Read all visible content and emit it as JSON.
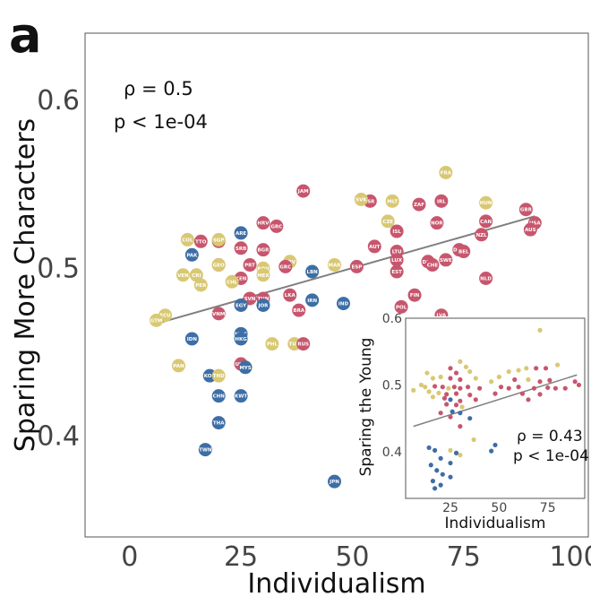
{
  "colors": {
    "blue": "#3d6ea6",
    "yellow": "#d9c873",
    "red": "#c7566d",
    "fit": "#808080"
  },
  "chart_data": [
    {
      "type": "scatter",
      "panel_label": "a",
      "xlabel": "Individualism",
      "ylabel": "Sparing More Characters",
      "xlim": [
        -10,
        103
      ],
      "ylim": [
        0.34,
        0.64
      ],
      "xticks": [
        0,
        25,
        50,
        75,
        100
      ],
      "yticks": [
        0.4,
        0.5,
        0.6
      ],
      "xtick_labels": [
        "0",
        "25",
        "50",
        "75",
        "100"
      ],
      "ytick_labels": [
        "0.4",
        "0.5",
        "0.6"
      ],
      "grid": false,
      "stat_rho": "ρ = 0.5",
      "stat_p": "p < 1e-04",
      "fit_line": {
        "x": [
          6,
          91
        ],
        "y": [
          0.467,
          0.531
        ]
      },
      "points": [
        {
          "label": "FRA",
          "x": 71,
          "y": 0.557,
          "group": "yellow"
        },
        {
          "label": "JAM",
          "x": 39,
          "y": 0.546,
          "group": "red"
        },
        {
          "label": "ISR",
          "x": 54,
          "y": 0.54,
          "group": "red"
        },
        {
          "label": "MLT",
          "x": 59,
          "y": 0.54,
          "group": "yellow"
        },
        {
          "label": "ZAF",
          "x": 65,
          "y": 0.538,
          "group": "red"
        },
        {
          "label": "IRL",
          "x": 70,
          "y": 0.54,
          "group": "red"
        },
        {
          "label": "HUN",
          "x": 80,
          "y": 0.539,
          "group": "yellow"
        },
        {
          "label": "GBR",
          "x": 89,
          "y": 0.535,
          "group": "red"
        },
        {
          "label": "SVK",
          "x": 52,
          "y": 0.541,
          "group": "yellow"
        },
        {
          "label": "CZE",
          "x": 58,
          "y": 0.528,
          "group": "yellow"
        },
        {
          "label": "NOR",
          "x": 69,
          "y": 0.527,
          "group": "red"
        },
        {
          "label": "CAN",
          "x": 80,
          "y": 0.528,
          "group": "red"
        },
        {
          "label": "USA",
          "x": 91,
          "y": 0.527,
          "group": "red"
        },
        {
          "label": "AUS",
          "x": 90,
          "y": 0.523,
          "group": "red"
        },
        {
          "label": "ISL",
          "x": 60,
          "y": 0.522,
          "group": "red"
        },
        {
          "label": "NZL",
          "x": 79,
          "y": 0.52,
          "group": "red"
        },
        {
          "label": "ARE",
          "x": 25,
          "y": 0.521,
          "group": "blue"
        },
        {
          "label": "HRV",
          "x": 30,
          "y": 0.527,
          "group": "red"
        },
        {
          "label": "GRC",
          "x": 33,
          "y": 0.525,
          "group": "red"
        },
        {
          "label": "COL",
          "x": 13,
          "y": 0.517,
          "group": "yellow"
        },
        {
          "label": "TTO",
          "x": 16,
          "y": 0.516,
          "group": "red"
        },
        {
          "label": "BGD",
          "x": 20,
          "y": 0.516,
          "group": "red"
        },
        {
          "label": "SGP",
          "x": 20,
          "y": 0.517,
          "group": "yellow"
        },
        {
          "label": "SRB",
          "x": 25,
          "y": 0.512,
          "group": "red"
        },
        {
          "label": "BGR",
          "x": 30,
          "y": 0.511,
          "group": "red"
        },
        {
          "label": "AUT",
          "x": 55,
          "y": 0.513,
          "group": "red"
        },
        {
          "label": "LTU",
          "x": 60,
          "y": 0.51,
          "group": "red"
        },
        {
          "label": "DNK",
          "x": 74,
          "y": 0.511,
          "group": "red"
        },
        {
          "label": "BEL",
          "x": 75,
          "y": 0.51,
          "group": "red"
        },
        {
          "label": "PAK",
          "x": 14,
          "y": 0.508,
          "group": "blue"
        },
        {
          "label": "LUX",
          "x": 60,
          "y": 0.505,
          "group": "red"
        },
        {
          "label": "DEU",
          "x": 67,
          "y": 0.504,
          "group": "red"
        },
        {
          "label": "SWE",
          "x": 71,
          "y": 0.505,
          "group": "red"
        },
        {
          "label": "CHE",
          "x": 68,
          "y": 0.502,
          "group": "red"
        },
        {
          "label": "IDN",
          "x": 20,
          "y": 0.502,
          "group": "red"
        },
        {
          "label": "PRT",
          "x": 27,
          "y": 0.502,
          "group": "red"
        },
        {
          "label": "ROU",
          "x": 30,
          "y": 0.5,
          "group": "yellow"
        },
        {
          "label": "GEO",
          "x": 20,
          "y": 0.502,
          "group": "yellow"
        },
        {
          "label": "CRV",
          "x": 36,
          "y": 0.504,
          "group": "yellow"
        },
        {
          "label": "GRC",
          "x": 35,
          "y": 0.501,
          "group": "red"
        },
        {
          "label": "MAR",
          "x": 46,
          "y": 0.502,
          "group": "yellow"
        },
        {
          "label": "ESP",
          "x": 51,
          "y": 0.501,
          "group": "red"
        },
        {
          "label": "EST",
          "x": 60,
          "y": 0.498,
          "group": "red"
        },
        {
          "label": "NLD",
          "x": 80,
          "y": 0.494,
          "group": "red"
        },
        {
          "label": "LBN",
          "x": 41,
          "y": 0.498,
          "group": "blue"
        },
        {
          "label": "MEX",
          "x": 30,
          "y": 0.496,
          "group": "yellow"
        },
        {
          "label": "VEN",
          "x": 12,
          "y": 0.496,
          "group": "yellow"
        },
        {
          "label": "CRI",
          "x": 15,
          "y": 0.496,
          "group": "yellow"
        },
        {
          "label": "KEN",
          "x": 25,
          "y": 0.494,
          "group": "red"
        },
        {
          "label": "PER",
          "x": 16,
          "y": 0.49,
          "group": "yellow"
        },
        {
          "label": "CHL",
          "x": 23,
          "y": 0.492,
          "group": "yellow"
        },
        {
          "label": "SVN",
          "x": 27,
          "y": 0.482,
          "group": "red"
        },
        {
          "label": "TUN",
          "x": 30,
          "y": 0.482,
          "group": "red"
        },
        {
          "label": "LKA",
          "x": 36,
          "y": 0.484,
          "group": "red"
        },
        {
          "label": "FIN",
          "x": 64,
          "y": 0.484,
          "group": "red"
        },
        {
          "label": "POL",
          "x": 61,
          "y": 0.477,
          "group": "red"
        },
        {
          "label": "IRN",
          "x": 41,
          "y": 0.481,
          "group": "blue"
        },
        {
          "label": "IND",
          "x": 48,
          "y": 0.479,
          "group": "blue"
        },
        {
          "label": "EGY",
          "x": 25,
          "y": 0.478,
          "group": "blue"
        },
        {
          "label": "JOR",
          "x": 30,
          "y": 0.478,
          "group": "blue"
        },
        {
          "label": "BRA",
          "x": 38,
          "y": 0.475,
          "group": "red"
        },
        {
          "label": "VNM",
          "x": 20,
          "y": 0.473,
          "group": "red"
        },
        {
          "label": "ECU",
          "x": 8,
          "y": 0.472,
          "group": "yellow"
        },
        {
          "label": "GTM",
          "x": 6,
          "y": 0.469,
          "group": "yellow"
        },
        {
          "label": "LVA",
          "x": 70,
          "y": 0.472,
          "group": "red"
        },
        {
          "label": "IDN",
          "x": 14,
          "y": 0.458,
          "group": "blue"
        },
        {
          "label": "MAC",
          "x": 25,
          "y": 0.461,
          "group": "blue"
        },
        {
          "label": "HKG",
          "x": 25,
          "y": 0.458,
          "group": "blue"
        },
        {
          "label": "PHL",
          "x": 32,
          "y": 0.455,
          "group": "yellow"
        },
        {
          "label": "TUR",
          "x": 37,
          "y": 0.455,
          "group": "yellow"
        },
        {
          "label": "RUS",
          "x": 39,
          "y": 0.455,
          "group": "red"
        },
        {
          "label": "PAN",
          "x": 11,
          "y": 0.442,
          "group": "yellow"
        },
        {
          "label": "UKR",
          "x": 25,
          "y": 0.443,
          "group": "red"
        },
        {
          "label": "MYS",
          "x": 26,
          "y": 0.441,
          "group": "blue"
        },
        {
          "label": "KOR",
          "x": 18,
          "y": 0.436,
          "group": "blue"
        },
        {
          "label": "THD",
          "x": 20,
          "y": 0.436,
          "group": "yellow"
        },
        {
          "label": "CHN",
          "x": 20,
          "y": 0.424,
          "group": "blue"
        },
        {
          "label": "KWT",
          "x": 25,
          "y": 0.424,
          "group": "blue"
        },
        {
          "label": "THA",
          "x": 20,
          "y": 0.408,
          "group": "blue"
        },
        {
          "label": "TWN",
          "x": 17,
          "y": 0.392,
          "group": "blue"
        },
        {
          "label": "JPN",
          "x": 46,
          "y": 0.373,
          "group": "blue"
        }
      ]
    },
    {
      "type": "scatter",
      "xlabel": "Individualism",
      "ylabel": "Sparing the Young",
      "xlim": [
        2,
        94
      ],
      "ylim": [
        0.33,
        0.6
      ],
      "xticks": [
        25,
        50,
        75
      ],
      "yticks": [
        0.4,
        0.5,
        0.6
      ],
      "xtick_labels": [
        "25",
        "50",
        "75"
      ],
      "ytick_labels": [
        "0.4",
        "0.5",
        "0.6"
      ],
      "grid": false,
      "stat_rho": "ρ = 0.43",
      "stat_p": "p < 1e-04",
      "fit_line": {
        "x": [
          6,
          90
        ],
        "y": [
          0.438,
          0.515
        ]
      },
      "points": [
        {
          "x": 71,
          "y": 0.582,
          "group": "yellow"
        },
        {
          "x": 30,
          "y": 0.535,
          "group": "yellow"
        },
        {
          "x": 33,
          "y": 0.527,
          "group": "yellow"
        },
        {
          "x": 25,
          "y": 0.525,
          "group": "red"
        },
        {
          "x": 28,
          "y": 0.518,
          "group": "red"
        },
        {
          "x": 35,
          "y": 0.52,
          "group": "yellow"
        },
        {
          "x": 55,
          "y": 0.52,
          "group": "yellow"
        },
        {
          "x": 60,
          "y": 0.522,
          "group": "yellow"
        },
        {
          "x": 64,
          "y": 0.525,
          "group": "yellow"
        },
        {
          "x": 69,
          "y": 0.525,
          "group": "red"
        },
        {
          "x": 74,
          "y": 0.525,
          "group": "red"
        },
        {
          "x": 80,
          "y": 0.53,
          "group": "yellow"
        },
        {
          "x": 13,
          "y": 0.518,
          "group": "yellow"
        },
        {
          "x": 16,
          "y": 0.51,
          "group": "yellow"
        },
        {
          "x": 20,
          "y": 0.512,
          "group": "yellow"
        },
        {
          "x": 25,
          "y": 0.51,
          "group": "red"
        },
        {
          "x": 30,
          "y": 0.508,
          "group": "red"
        },
        {
          "x": 38,
          "y": 0.51,
          "group": "yellow"
        },
        {
          "x": 46,
          "y": 0.505,
          "group": "yellow"
        },
        {
          "x": 50,
          "y": 0.512,
          "group": "yellow"
        },
        {
          "x": 58,
          "y": 0.508,
          "group": "red"
        },
        {
          "x": 65,
          "y": 0.508,
          "group": "yellow"
        },
        {
          "x": 71,
          "y": 0.505,
          "group": "red"
        },
        {
          "x": 76,
          "y": 0.507,
          "group": "red"
        },
        {
          "x": 89,
          "y": 0.505,
          "group": "red"
        },
        {
          "x": 91,
          "y": 0.5,
          "group": "red"
        },
        {
          "x": 10,
          "y": 0.5,
          "group": "yellow"
        },
        {
          "x": 12,
          "y": 0.497,
          "group": "yellow"
        },
        {
          "x": 17,
          "y": 0.498,
          "group": "red"
        },
        {
          "x": 21,
          "y": 0.497,
          "group": "red"
        },
        {
          "x": 24,
          "y": 0.495,
          "group": "yellow"
        },
        {
          "x": 27,
          "y": 0.497,
          "group": "red"
        },
        {
          "x": 30,
          "y": 0.495,
          "group": "red"
        },
        {
          "x": 34,
          "y": 0.497,
          "group": "red"
        },
        {
          "x": 40,
          "y": 0.495,
          "group": "red"
        },
        {
          "x": 51,
          "y": 0.497,
          "group": "red"
        },
        {
          "x": 55,
          "y": 0.495,
          "group": "red"
        },
        {
          "x": 60,
          "y": 0.497,
          "group": "red"
        },
        {
          "x": 68,
          "y": 0.495,
          "group": "red"
        },
        {
          "x": 75,
          "y": 0.496,
          "group": "red"
        },
        {
          "x": 79,
          "y": 0.495,
          "group": "red"
        },
        {
          "x": 84,
          "y": 0.495,
          "group": "red"
        },
        {
          "x": 6,
          "y": 0.492,
          "group": "yellow"
        },
        {
          "x": 14,
          "y": 0.49,
          "group": "yellow"
        },
        {
          "x": 19,
          "y": 0.488,
          "group": "yellow"
        },
        {
          "x": 23,
          "y": 0.486,
          "group": "red"
        },
        {
          "x": 28,
          "y": 0.487,
          "group": "red"
        },
        {
          "x": 35,
          "y": 0.485,
          "group": "red"
        },
        {
          "x": 48,
          "y": 0.487,
          "group": "red"
        },
        {
          "x": 62,
          "y": 0.487,
          "group": "red"
        },
        {
          "x": 71,
          "y": 0.486,
          "group": "red"
        },
        {
          "x": 16,
          "y": 0.482,
          "group": "yellow"
        },
        {
          "x": 22,
          "y": 0.48,
          "group": "red"
        },
        {
          "x": 25,
          "y": 0.478,
          "group": "blue"
        },
        {
          "x": 30,
          "y": 0.476,
          "group": "red"
        },
        {
          "x": 38,
          "y": 0.478,
          "group": "red"
        },
        {
          "x": 65,
          "y": 0.478,
          "group": "red"
        },
        {
          "x": 23,
          "y": 0.471,
          "group": "red"
        },
        {
          "x": 28,
          "y": 0.47,
          "group": "red"
        },
        {
          "x": 31,
          "y": 0.467,
          "group": "yellow"
        },
        {
          "x": 26,
          "y": 0.46,
          "group": "blue"
        },
        {
          "x": 30,
          "y": 0.458,
          "group": "blue"
        },
        {
          "x": 20,
          "y": 0.458,
          "group": "red"
        },
        {
          "x": 25,
          "y": 0.452,
          "group": "red"
        },
        {
          "x": 35,
          "y": 0.45,
          "group": "blue"
        },
        {
          "x": 30,
          "y": 0.438,
          "group": "red"
        },
        {
          "x": 37,
          "y": 0.418,
          "group": "yellow"
        },
        {
          "x": 48,
          "y": 0.41,
          "group": "blue"
        },
        {
          "x": 46,
          "y": 0.401,
          "group": "blue"
        },
        {
          "x": 14,
          "y": 0.406,
          "group": "blue"
        },
        {
          "x": 17,
          "y": 0.402,
          "group": "blue"
        },
        {
          "x": 25,
          "y": 0.402,
          "group": "yellow"
        },
        {
          "x": 28,
          "y": 0.398,
          "group": "blue"
        },
        {
          "x": 30,
          "y": 0.395,
          "group": "yellow"
        },
        {
          "x": 20,
          "y": 0.39,
          "group": "blue"
        },
        {
          "x": 25,
          "y": 0.383,
          "group": "blue"
        },
        {
          "x": 15,
          "y": 0.38,
          "group": "blue"
        },
        {
          "x": 18,
          "y": 0.372,
          "group": "blue"
        },
        {
          "x": 21,
          "y": 0.366,
          "group": "blue"
        },
        {
          "x": 25,
          "y": 0.362,
          "group": "blue"
        },
        {
          "x": 16,
          "y": 0.356,
          "group": "blue"
        },
        {
          "x": 20,
          "y": 0.35,
          "group": "blue"
        },
        {
          "x": 17,
          "y": 0.345,
          "group": "blue"
        }
      ]
    }
  ]
}
